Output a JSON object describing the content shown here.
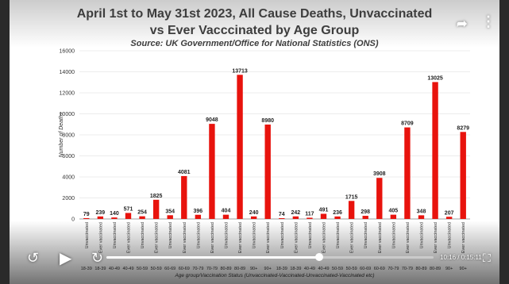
{
  "colors": {
    "bar": "#e8130d",
    "text": "#3d3d3d",
    "grid": "#d9d9d9"
  },
  "header": {
    "title_line1": "April 1st to May 31st 2023, All Cause Deaths, Unvaccinated",
    "title_line2": "vs Ever Vacccinated by Age Group",
    "subtitle": "Source: UK Government/Office for National Statistics (ONS)"
  },
  "player": {
    "share_icon": "share-icon",
    "more_icon": "more-vertical-icon",
    "rewind_icon": "rewind-10-icon",
    "play_icon": "play-icon",
    "forward_icon": "forward-10-icon",
    "fullscreen_icon": "fullscreen-icon",
    "time": "10:16 / 0:15:11",
    "progress": 0.65
  },
  "chart_data": {
    "type": "bar",
    "title": "April 1st to May 31st 2023, All Cause Deaths, Unvaccinated vs Ever Vacccinated by Age Group",
    "subtitle": "Source: UK Government/Office for National Statistics (ONS)",
    "ylabel": "Number of Deaths",
    "xlabel": "Age group/Vaccination Status (Unvaccinated-Vaccinated-Unvaccinated-Vaccinated etc)",
    "ylim": [
      0,
      16000
    ],
    "yticks": [
      0,
      2000,
      4000,
      6000,
      8000,
      10000,
      12000,
      14000,
      16000
    ],
    "grid": true,
    "categories": [
      "18-39",
      "18-39",
      "40-49",
      "40-49",
      "50-59",
      "50-59",
      "60-69",
      "60-69",
      "70-79",
      "70-79",
      "80-89",
      "80-89",
      "90+",
      "90+",
      "18-39",
      "18-39",
      "40-49",
      "40-49",
      "50-59",
      "50-59",
      "60-69",
      "60-69",
      "70-79",
      "70-79",
      "80-89",
      "80-89",
      "90+",
      "90+"
    ],
    "status": [
      "Unvaccinated",
      "Ever vaccinated",
      "Unvaccinated",
      "Ever vaccinated",
      "Unvaccinated",
      "Ever vaccinated",
      "Unvaccinated",
      "Ever vaccinated",
      "Unvaccinated",
      "Ever vaccinated",
      "Unvaccinated",
      "Ever vaccinated",
      "Unvaccinated",
      "Ever vaccinated",
      "Unvaccinated",
      "Ever vaccinated",
      "Unvaccinated",
      "Ever vaccinated",
      "Unvaccinated",
      "Ever vaccinated",
      "Unvaccinated",
      "Ever vaccinated",
      "Unvaccinated",
      "Ever vaccinated",
      "Unvaccinated",
      "Ever vaccinated",
      "Unvaccinated",
      "Ever vaccinated"
    ],
    "values": [
      79,
      239,
      140,
      571,
      254,
      1825,
      354,
      4081,
      396,
      9048,
      404,
      13713,
      240,
      8980,
      74,
      242,
      117,
      491,
      236,
      1715,
      298,
      3908,
      405,
      8709,
      348,
      13025,
      207,
      8279
    ]
  }
}
